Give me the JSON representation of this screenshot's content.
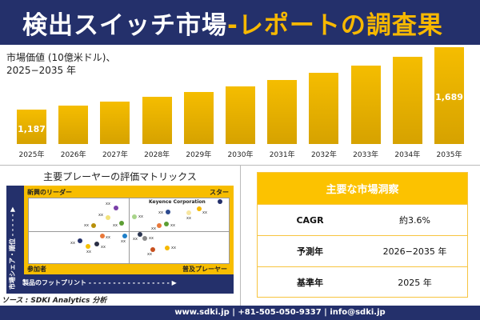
{
  "header": {
    "title_white": "検出スイッチ市場",
    "title_yellow": "-レポートの調査果"
  },
  "chart_data": {
    "type": "bar",
    "title": "市場価値 (10億米ドル)、",
    "subtitle": "2025−2035 年",
    "categories": [
      "2025年",
      "2026年",
      "2027年",
      "2028年",
      "2029年",
      "2030年",
      "2031年",
      "2032年",
      "2033年",
      "2034年",
      "2035年"
    ],
    "values": [
      1187,
      1217,
      1252,
      1289,
      1328,
      1373,
      1425,
      1485,
      1541,
      1613,
      1689
    ],
    "data_labels": {
      "0": "1,187",
      "10": "1,689"
    },
    "bar_color": "#f5bd00"
  },
  "matrix": {
    "title": "主要プレーヤーの評価マトリックス",
    "q_tl": "新興のリーダー",
    "q_tr": "スター",
    "q_bl": "参加者",
    "q_br": "普及プレーヤー",
    "y_axis": "市場シェア・順位",
    "x_axis": "製品のフットプリント",
    "highlight": "Keyence Corporation",
    "point_label": "xx",
    "point_colors": [
      "#7a3fa8",
      "#f2e27a",
      "#b8900a",
      "#5c9e34",
      "#a8d48a",
      "#2c4a8f",
      "#f7e6a0",
      "#f5b800",
      "#24306b",
      "#e8783a",
      "#5c9e34",
      "#e8783a",
      "#1e7fc8",
      "#24306b",
      "#f5c000",
      "#2a2f45",
      "#2a3550",
      "#888888",
      "#c8501e",
      "#f5b800"
    ]
  },
  "source": "ソース : SDKI Analytics 分析",
  "insights": {
    "title": "主要な市場洞察",
    "rows": [
      {
        "k": "CAGR",
        "v": "約3.6%"
      },
      {
        "k": "予測年",
        "v": "2026−2035 年"
      },
      {
        "k": "基準年",
        "v": "2025 年"
      }
    ]
  },
  "footer": "www.sdki.jp | +81-505-050-9337 | info@sdki.jp"
}
